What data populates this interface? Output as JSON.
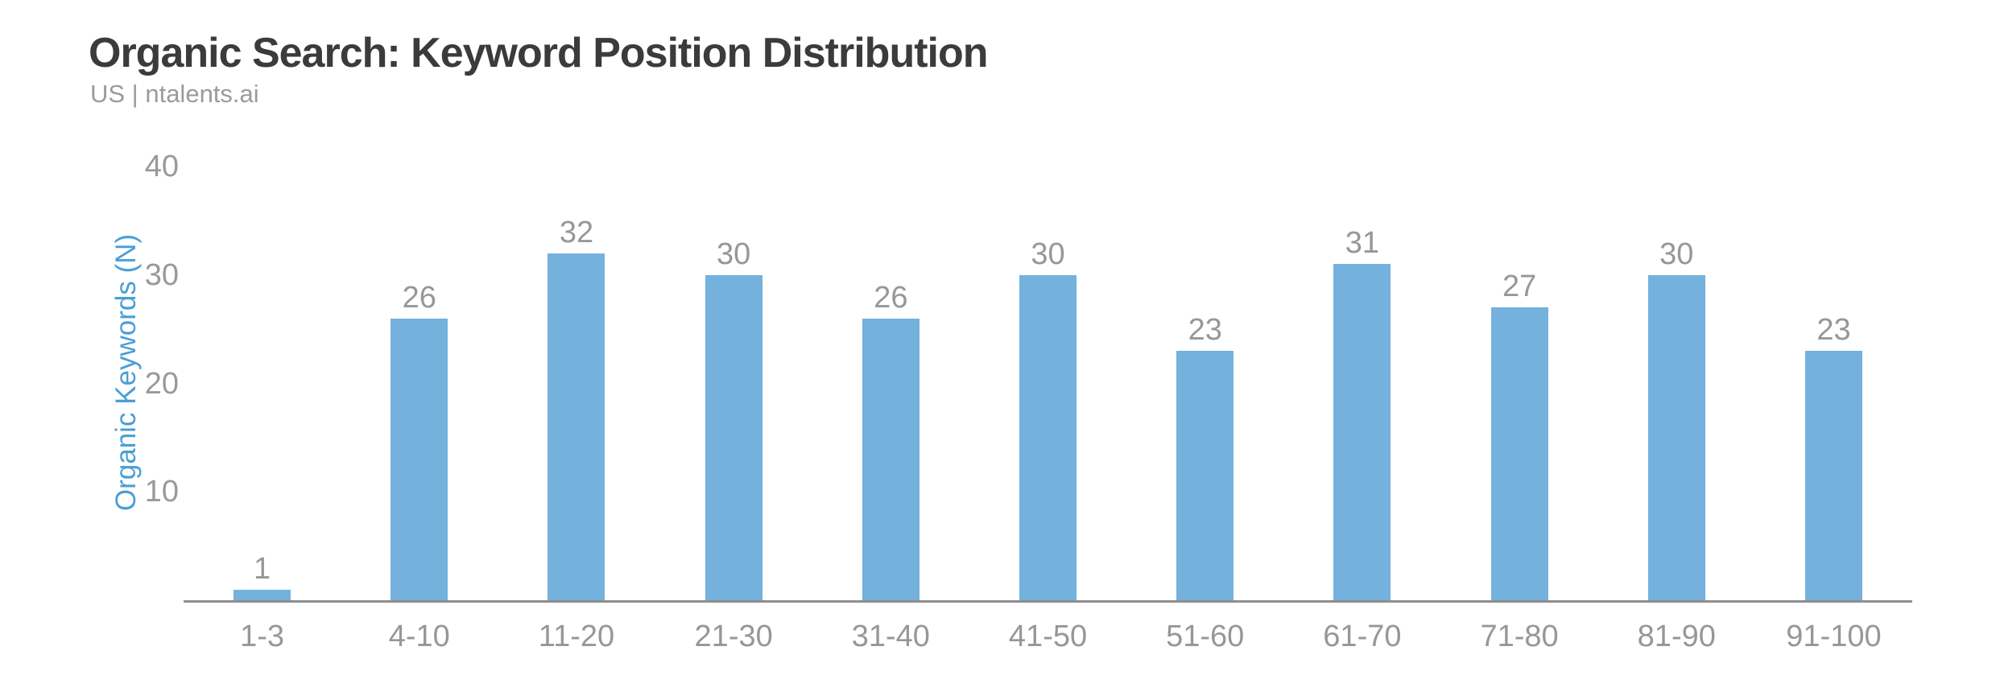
{
  "header": {
    "title": "Organic Search: Keyword Position Distribution",
    "subtitle": "US | ntalents.ai"
  },
  "chart_data": {
    "type": "bar",
    "title": "Organic Search: Keyword Position Distribution",
    "subtitle": "US | ntalents.ai",
    "xlabel": "",
    "ylabel": "Organic Keywords (N)",
    "categories": [
      "1-3",
      "4-10",
      "11-20",
      "21-30",
      "31-40",
      "41-50",
      "51-60",
      "61-70",
      "71-80",
      "81-90",
      "91-100"
    ],
    "values": [
      1,
      26,
      32,
      30,
      26,
      30,
      23,
      31,
      27,
      30,
      23
    ],
    "yticks": [
      10,
      20,
      30,
      40
    ],
    "ylim": [
      0,
      40
    ],
    "grid": false,
    "legend": "none",
    "colors": {
      "bar": "#74b1dd",
      "y_axis_title": "#4a9ed6",
      "tick_text": "#999999",
      "value_label_text": "#979797",
      "title_text": "#3b3b3b",
      "subtitle_text": "#9b9b9b",
      "axis_line": "#8e8e8e",
      "background": "#ffffff"
    }
  }
}
